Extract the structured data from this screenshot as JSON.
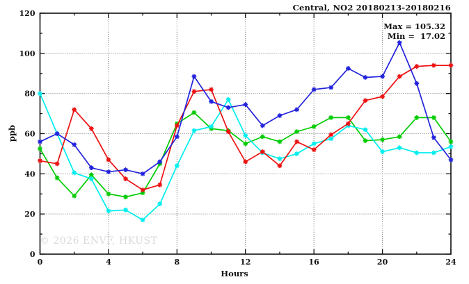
{
  "header": {
    "title": "Central, NO2 20180213-20180216"
  },
  "annotations": {
    "max_label": "Max = 105.32",
    "min_label": "Min =  17.02"
  },
  "watermark": "© 2026 ENVF, HKUST",
  "axes": {
    "xlabel": "Hours",
    "ylabel": "ppb"
  },
  "chart_data": {
    "type": "line",
    "title": "Central, NO2 20180213-20180216",
    "xlabel": "Hours",
    "ylabel": "ppb",
    "xlim": [
      0,
      24
    ],
    "ylim": [
      0,
      120
    ],
    "x_major_ticks": [
      0,
      4,
      8,
      12,
      16,
      20,
      24
    ],
    "x_minor_step": 2,
    "y_major_ticks": [
      0,
      20,
      40,
      60,
      80,
      100,
      120
    ],
    "y_minor_step": 10,
    "grid": "dotted gray at major ticks, full frame with mirrored ticks",
    "legend_position": "none",
    "max_value": 105.32,
    "min_value": 17.02,
    "x": [
      0,
      1,
      2,
      3,
      4,
      5,
      6,
      7,
      8,
      9,
      10,
      11,
      12,
      13,
      14,
      15,
      16,
      17,
      18,
      19,
      20,
      21,
      22,
      23,
      24
    ],
    "series": [
      {
        "name": "green-line",
        "color": "#00cc00",
        "values": [
          52.5,
          38,
          29,
          39.5,
          30,
          28.5,
          30.5,
          45,
          65,
          70.5,
          62.5,
          61.5,
          55,
          58.5,
          56,
          61,
          63.5,
          68,
          68,
          56.5,
          57,
          58.5,
          68,
          68,
          56
        ]
      },
      {
        "name": "cyan-line",
        "color": "#00eeee",
        "values": [
          80,
          60,
          40.5,
          37.5,
          21.5,
          22,
          17.02,
          25,
          44,
          61.5,
          63.5,
          77,
          59,
          50.5,
          47.5,
          50,
          55,
          57.5,
          64,
          62,
          51,
          53,
          50.5,
          50.5,
          53.5
        ]
      },
      {
        "name": "red-line",
        "color": "#ee1111",
        "values": [
          46.5,
          45,
          72,
          62.5,
          47,
          37.5,
          32,
          34.5,
          64,
          81,
          82,
          61,
          46,
          51,
          44,
          56,
          52,
          59.5,
          65,
          76.5,
          78.5,
          88.5,
          93.5,
          94,
          94
        ]
      },
      {
        "name": "blue-line",
        "color": "#2222dd",
        "values": [
          56,
          60,
          54.5,
          43,
          41,
          42,
          40,
          46,
          58.5,
          88.5,
          76,
          73,
          74.5,
          64,
          69,
          72,
          82,
          83,
          92.5,
          88,
          88.5,
          105.32,
          85,
          58,
          47
        ]
      }
    ]
  }
}
